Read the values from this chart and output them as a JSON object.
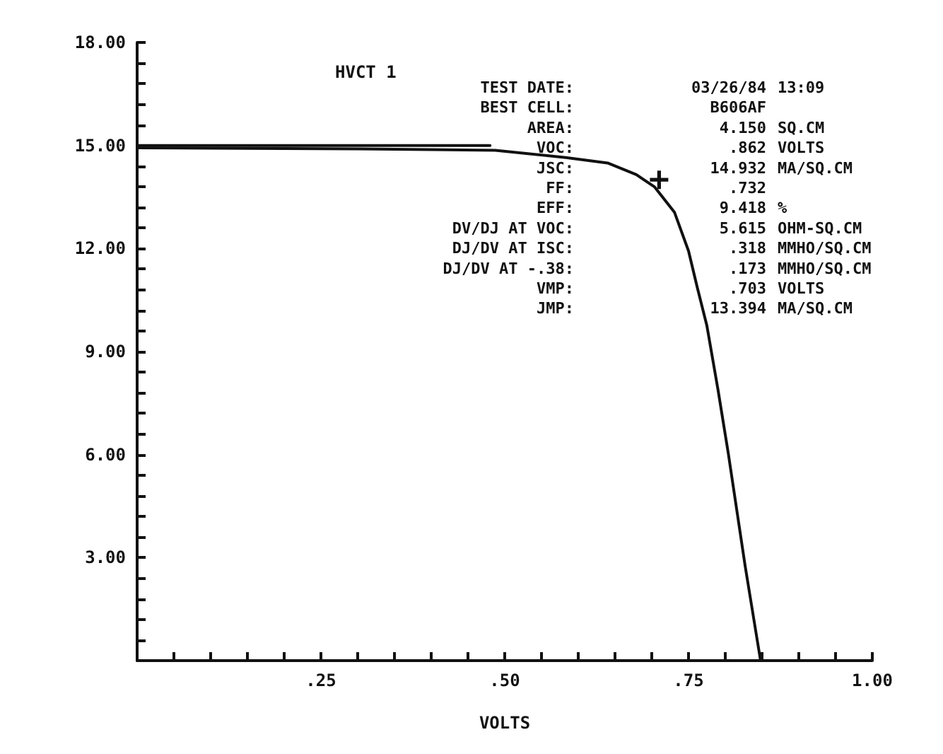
{
  "chart_data": {
    "type": "line",
    "title": "HVCT 1",
    "xlabel": "VOLTS",
    "xlim": [
      0,
      1
    ],
    "ylim": [
      0,
      18
    ],
    "xticks": [
      {
        "value": 0.05,
        "label": null
      },
      {
        "value": 0.1,
        "label": null
      },
      {
        "value": 0.15,
        "label": null
      },
      {
        "value": 0.2,
        "label": null
      },
      {
        "value": 0.25,
        "label": ".25"
      },
      {
        "value": 0.3,
        "label": null
      },
      {
        "value": 0.35,
        "label": null
      },
      {
        "value": 0.4,
        "label": null
      },
      {
        "value": 0.45,
        "label": null
      },
      {
        "value": 0.5,
        "label": ".50"
      },
      {
        "value": 0.55,
        "label": null
      },
      {
        "value": 0.6,
        "label": null
      },
      {
        "value": 0.65,
        "label": null
      },
      {
        "value": 0.7,
        "label": null
      },
      {
        "value": 0.75,
        "label": ".75"
      },
      {
        "value": 0.8,
        "label": null
      },
      {
        "value": 0.85,
        "label": null
      },
      {
        "value": 0.9,
        "label": null
      },
      {
        "value": 0.95,
        "label": null
      },
      {
        "value": 1,
        "label": "1.00"
      }
    ],
    "yticks": [
      {
        "value": 0.6,
        "label": null
      },
      {
        "value": 1.2,
        "label": null
      },
      {
        "value": 1.8,
        "label": null
      },
      {
        "value": 2.4,
        "label": null
      },
      {
        "value": 3,
        "label": "3.00"
      },
      {
        "value": 3.6,
        "label": null
      },
      {
        "value": 4.2,
        "label": null
      },
      {
        "value": 4.8,
        "label": null
      },
      {
        "value": 5.4,
        "label": null
      },
      {
        "value": 6,
        "label": "6.00"
      },
      {
        "value": 6.6,
        "label": null
      },
      {
        "value": 7.2,
        "label": null
      },
      {
        "value": 7.8,
        "label": null
      },
      {
        "value": 8.4,
        "label": null
      },
      {
        "value": 9,
        "label": "9.00"
      },
      {
        "value": 9.6,
        "label": null
      },
      {
        "value": 10.2,
        "label": null
      },
      {
        "value": 10.8,
        "label": null
      },
      {
        "value": 11.4,
        "label": null
      },
      {
        "value": 12,
        "label": "12.00"
      },
      {
        "value": 12.6,
        "label": null
      },
      {
        "value": 13.2,
        "label": null
      },
      {
        "value": 13.8,
        "label": null
      },
      {
        "value": 14.4,
        "label": null
      },
      {
        "value": 15,
        "label": "15.00"
      },
      {
        "value": 15.6,
        "label": null
      },
      {
        "value": 16.2,
        "label": null
      },
      {
        "value": 16.8,
        "label": null
      },
      {
        "value": 17.4,
        "label": null
      },
      {
        "value": 18,
        "label": "18.00"
      }
    ],
    "grid": false,
    "marker": "none",
    "line_style": "solid",
    "series": [
      {
        "color": "#111111",
        "x": [
          0,
          0.1,
          0.2,
          0.3,
          0.4,
          0.487,
          0.583,
          0.64,
          0.679,
          0.704,
          0.731,
          0.75,
          0.762,
          0.775,
          0.79,
          0.804,
          0.827,
          0.848
        ],
        "values": [
          14.93,
          14.92,
          14.91,
          14.9,
          14.88,
          14.86,
          14.65,
          14.49,
          14.15,
          13.79,
          13.05,
          11.93,
          10.86,
          9.75,
          7.9,
          6.05,
          2.76,
          0
        ]
      },
      {
        "color": "#111111",
        "x": [
          0,
          0.48
        ],
        "values": [
          15.0,
          15.0
        ]
      },
      {
        "type": "scatter",
        "marker": "cross",
        "color": "#111111",
        "x": [
          0.71
        ],
        "values": [
          14.0
        ]
      }
    ],
    "annotations": [
      "TEST DATE:\t03/26/84\t13:09",
      "BEST CELL:\tB606AF\t",
      "AREA:\t4.150\tSQ.CM",
      "VOC:\t.862\tVOLTS",
      "JSC:\t14.932\tMA/SQ.CM",
      "FF:\t.732\t",
      "EFF:\t9.418\t%",
      "DV/DJ AT VOC:\t5.615\tOHM-SQ.CM",
      "DJ/DV AT ISC:\t.318\tMMHO/SQ.CM",
      "DJ/DV AT -.38:\t.173\tMMHO/SQ.CM",
      "VMP:\t.703\tVOLTS",
      "JMP:\t13.394\tMA/SQ.CM"
    ]
  }
}
